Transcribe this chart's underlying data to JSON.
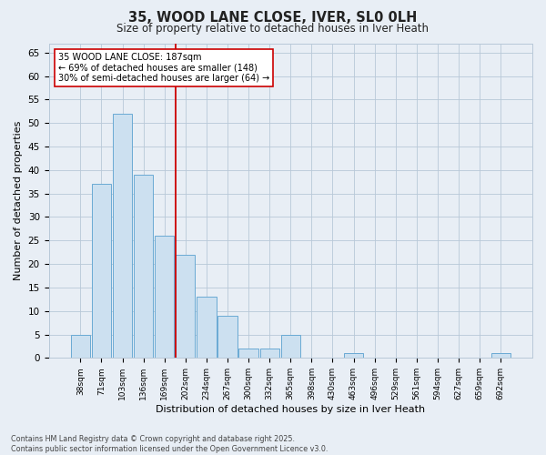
{
  "title1": "35, WOOD LANE CLOSE, IVER, SL0 0LH",
  "title2": "Size of property relative to detached houses in Iver Heath",
  "xlabel": "Distribution of detached houses by size in Iver Heath",
  "ylabel": "Number of detached properties",
  "bin_labels": [
    "38sqm",
    "71sqm",
    "103sqm",
    "136sqm",
    "169sqm",
    "202sqm",
    "234sqm",
    "267sqm",
    "300sqm",
    "332sqm",
    "365sqm",
    "398sqm",
    "430sqm",
    "463sqm",
    "496sqm",
    "529sqm",
    "561sqm",
    "594sqm",
    "627sqm",
    "659sqm",
    "692sqm"
  ],
  "bar_values": [
    5,
    37,
    52,
    39,
    26,
    22,
    13,
    9,
    2,
    2,
    5,
    0,
    0,
    1,
    0,
    0,
    0,
    0,
    0,
    0,
    1
  ],
  "bar_color": "#cce0f0",
  "bar_edge_color": "#6aaad4",
  "vline_x": 4.54,
  "vline_color": "#cc0000",
  "annotation_text": "35 WOOD LANE CLOSE: 187sqm\n← 69% of detached houses are smaller (148)\n30% of semi-detached houses are larger (64) →",
  "annotation_box_color": "#ffffff",
  "annotation_box_edge": "#cc0000",
  "ylim": [
    0,
    67
  ],
  "yticks": [
    0,
    5,
    10,
    15,
    20,
    25,
    30,
    35,
    40,
    45,
    50,
    55,
    60,
    65
  ],
  "footer1": "Contains HM Land Registry data © Crown copyright and database right 2025.",
  "footer2": "Contains public sector information licensed under the Open Government Licence v3.0.",
  "bg_color": "#e8eef5",
  "plot_bg_color": "#e8eef5",
  "grid_color": "#b8c8d8"
}
